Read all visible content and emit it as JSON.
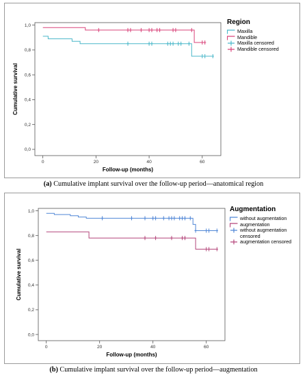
{
  "chart_data": [
    {
      "type": "line",
      "subtype": "kaplan-meier",
      "xlabel": "Follow-up (months)",
      "ylabel": "Cumulative survival",
      "xlim": [
        -3,
        67
      ],
      "ylim": [
        -0.05,
        1.02
      ],
      "xticks": [
        0,
        20,
        40,
        60
      ],
      "yticks": [
        0.0,
        0.2,
        0.4,
        0.6,
        0.8,
        1.0
      ],
      "ytick_labels": [
        "0,0",
        "0,2",
        "0,4",
        "0,6",
        "0,8",
        "1,0"
      ],
      "legend": {
        "title": "Region",
        "placement": "right",
        "entries": [
          "Maxilla",
          "Mandible",
          "Maxilla censored",
          "Mandible censored"
        ]
      },
      "series": [
        {
          "name": "Maxilla",
          "color": "#4ab7c9",
          "steps": [
            [
              0,
              0.91
            ],
            [
              2,
              0.89
            ],
            [
              4,
              0.89
            ],
            [
              11,
              0.87
            ],
            [
              14,
              0.85
            ],
            [
              56,
              0.85
            ],
            [
              56,
              0.75
            ],
            [
              64,
              0.75
            ]
          ],
          "censored_x": [
            32,
            40,
            41,
            47,
            48,
            49,
            51,
            52,
            55,
            60,
            61,
            64
          ]
        },
        {
          "name": "Mandible",
          "color": "#d9437a",
          "steps": [
            [
              0,
              0.98
            ],
            [
              16,
              0.98
            ],
            [
              16,
              0.96
            ],
            [
              57,
              0.96
            ],
            [
              57,
              0.86
            ],
            [
              61,
              0.86
            ]
          ],
          "censored_x": [
            21,
            32,
            33,
            37,
            40,
            41,
            43,
            44,
            49,
            50,
            56,
            60,
            61
          ]
        }
      ],
      "caption_label": "(a)",
      "caption_text": "Cumulative implant survival over the follow-up period—anatomical region"
    },
    {
      "type": "line",
      "subtype": "kaplan-meier",
      "xlabel": "Follow-up (months)",
      "ylabel": "Cumulative survival",
      "xlim": [
        -3,
        67
      ],
      "ylim": [
        -0.05,
        1.02
      ],
      "xticks": [
        0,
        20,
        40,
        60
      ],
      "yticks": [
        0.0,
        0.2,
        0.4,
        0.6,
        0.8,
        1.0
      ],
      "ytick_labels": [
        "0,0",
        "0,2",
        "0,4",
        "0,6",
        "0,8",
        "1,0"
      ],
      "legend": {
        "title": "Augmentation",
        "placement": "right",
        "entries": [
          "without augmentation",
          "augmentation",
          "without augmentation censored",
          "augmentation censored"
        ]
      },
      "series": [
        {
          "name": "without augmentation",
          "color": "#4f86d6",
          "steps": [
            [
              0,
              0.98
            ],
            [
              3,
              0.97
            ],
            [
              9,
              0.96
            ],
            [
              12,
              0.95
            ],
            [
              15,
              0.94
            ],
            [
              55,
              0.94
            ],
            [
              55,
              0.89
            ],
            [
              56,
              0.84
            ],
            [
              64,
              0.84
            ]
          ],
          "censored_x": [
            21,
            32,
            37,
            40,
            41,
            44,
            46,
            47,
            48,
            50,
            51,
            52,
            54,
            56,
            60,
            61,
            64
          ]
        },
        {
          "name": "augmentation",
          "color": "#b4457a",
          "steps": [
            [
              0,
              0.83
            ],
            [
              16,
              0.83
            ],
            [
              16,
              0.78
            ],
            [
              56,
              0.78
            ],
            [
              56,
              0.69
            ],
            [
              64,
              0.69
            ]
          ],
          "censored_x": [
            37,
            41,
            47,
            51,
            52,
            60,
            61,
            64
          ]
        }
      ],
      "caption_label": "(b)",
      "caption_text": "Cumulative implant survival over the follow-up period—augmentation"
    }
  ]
}
